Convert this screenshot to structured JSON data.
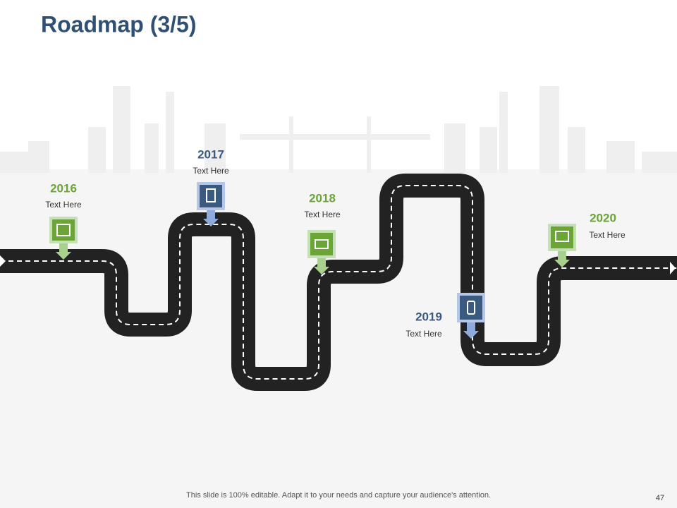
{
  "header": {
    "title": "Roadmap (3/5)"
  },
  "milestones": [
    {
      "year": "2016",
      "text": "Text Here"
    },
    {
      "year": "2017",
      "text": "Text Here"
    },
    {
      "year": "2018",
      "text": "Text Here"
    },
    {
      "year": "2019",
      "text": "Text Here"
    },
    {
      "year": "2020",
      "text": "Text Here"
    }
  ],
  "footer": {
    "note": "This slide is 100% editable. Adapt it to your needs and capture your audience's attention.",
    "page": "47"
  }
}
